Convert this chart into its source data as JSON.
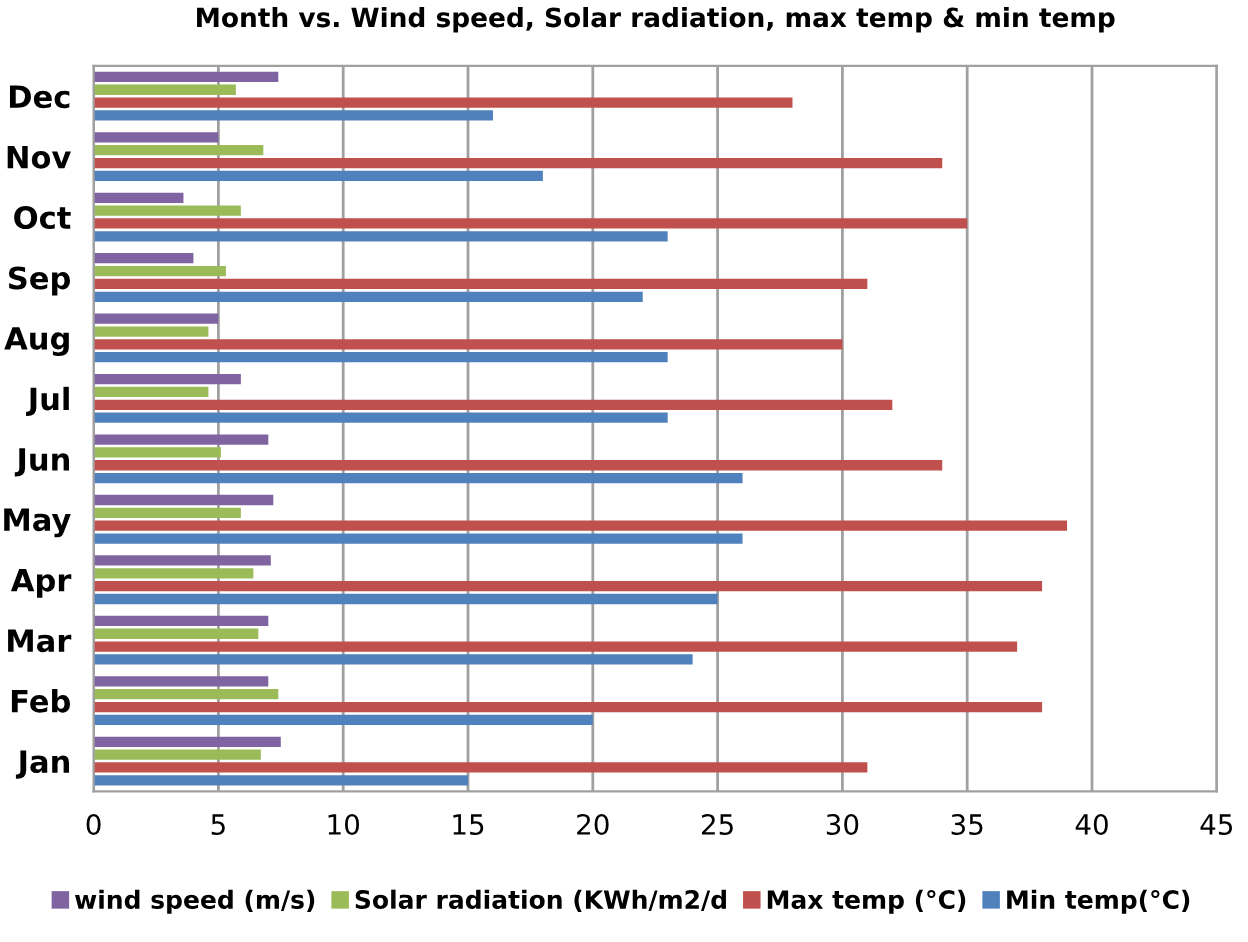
{
  "chart_data": {
    "type": "bar",
    "orientation": "horizontal",
    "title": "Month vs. Wind speed, Solar radiation, max temp & min temp",
    "categories": [
      "Dec",
      "Nov",
      "Oct",
      "Sep",
      "Aug",
      "Jul",
      "Jun",
      "May",
      "Apr",
      "Mar",
      "Feb",
      "Jan"
    ],
    "series": [
      {
        "name": "wind speed (m/s)",
        "color": "#8064a2",
        "values": [
          7.4,
          5.0,
          3.6,
          4.0,
          5.0,
          5.9,
          7.0,
          7.2,
          7.1,
          7.0,
          7.0,
          7.5
        ]
      },
      {
        "name": "Solar radiation (KWh/m2/d",
        "color": "#9bbb59",
        "values": [
          5.7,
          6.8,
          5.9,
          5.3,
          4.6,
          4.6,
          5.1,
          5.9,
          6.4,
          6.6,
          7.4,
          6.7
        ]
      },
      {
        "name": "Max temp (°C)",
        "color": "#c0504d",
        "values": [
          28,
          34,
          35,
          31,
          30,
          32,
          34,
          39,
          38,
          37,
          38,
          31
        ]
      },
      {
        "name": "Min temp(°C)",
        "color": "#4f81bd",
        "values": [
          16,
          18,
          23,
          22,
          23,
          23,
          26,
          26,
          25,
          24,
          20,
          15
        ]
      }
    ],
    "xlim": [
      0,
      45
    ],
    "xticks": [
      0,
      5,
      10,
      15,
      20,
      25,
      30,
      35,
      40,
      45
    ],
    "grid": "x",
    "legend": "bottom"
  }
}
